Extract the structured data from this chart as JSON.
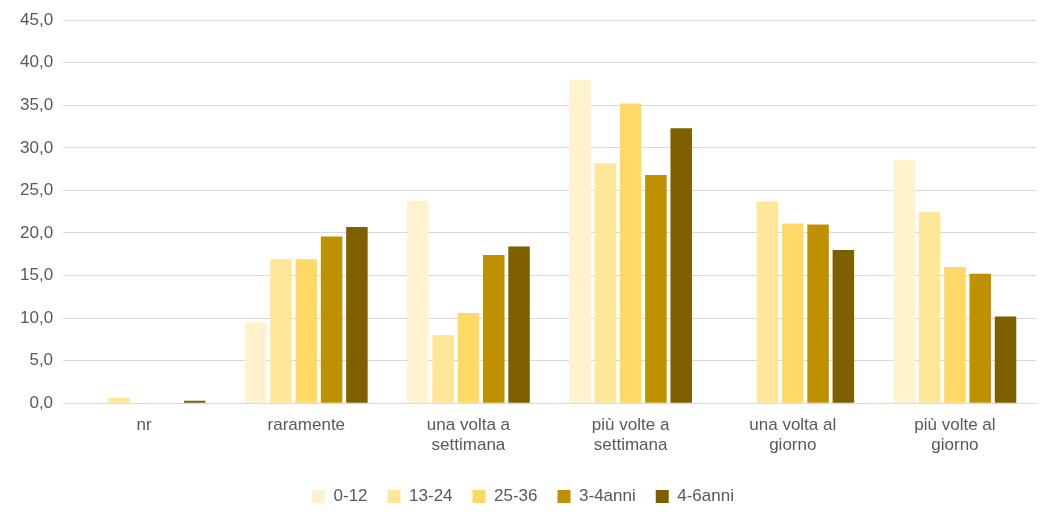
{
  "chart_data": {
    "type": "bar",
    "categories": [
      "nr",
      "raramente",
      "una volta a settimana",
      "più volte a settimana",
      "una volta al giorno",
      "più volte al giorno"
    ],
    "series": [
      {
        "name": "0-12",
        "color": "#fff2cc",
        "values": [
          null,
          9.5,
          23.8,
          38.0,
          null,
          28.6
        ]
      },
      {
        "name": "13-24",
        "color": "#ffe699",
        "values": [
          0.6,
          16.9,
          8.0,
          28.2,
          23.7,
          22.5
        ]
      },
      {
        "name": "25-36",
        "color": "#ffd966",
        "values": [
          null,
          16.9,
          10.6,
          35.2,
          21.1,
          16.0
        ]
      },
      {
        "name": "3-4anni",
        "color": "#bf9000",
        "values": [
          null,
          19.6,
          17.4,
          26.8,
          21.0,
          15.2
        ]
      },
      {
        "name": "4-6anni",
        "color": "#7f6000",
        "values": [
          0.3,
          20.7,
          18.4,
          32.3,
          18.0,
          10.2
        ]
      }
    ],
    "ylim": [
      0,
      45
    ],
    "yticks": [
      {
        "value": 0,
        "label": "0,0"
      },
      {
        "value": 5,
        "label": "5,0"
      },
      {
        "value": 10,
        "label": "10,0"
      },
      {
        "value": 15,
        "label": "15,0"
      },
      {
        "value": 20,
        "label": "20,0"
      },
      {
        "value": 25,
        "label": "25,0"
      },
      {
        "value": 30,
        "label": "30,0"
      },
      {
        "value": 35,
        "label": "35,0"
      },
      {
        "value": 40,
        "label": "40,0"
      },
      {
        "value": 45,
        "label": "45,0"
      }
    ],
    "grid": "y",
    "legend": "bottom"
  }
}
